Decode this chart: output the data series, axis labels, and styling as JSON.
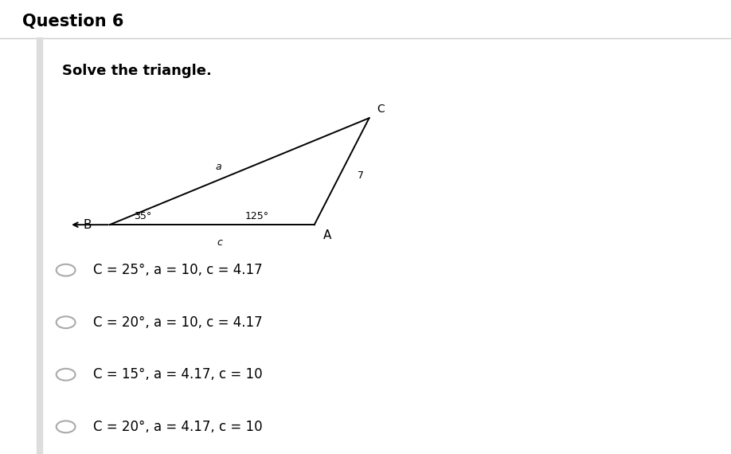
{
  "title": "Question 6",
  "subtitle": "Solve the triangle.",
  "background_color": "#ffffff",
  "angle_B": "35°",
  "angle_A": "125°",
  "label_a": "a",
  "label_c": "c",
  "label_7": "7",
  "vertex_labels": {
    "B": "B",
    "A": "A",
    "C": "C"
  },
  "choices": [
    "C = 25°, a = 10, c = 4.17",
    "C = 20°, a = 10, c = 4.17",
    "C = 15°, a = 4.17, c = 10",
    "C = 20°, a = 4.17, c = 10"
  ],
  "title_fontsize": 15,
  "subtitle_fontsize": 13,
  "choice_fontsize": 12,
  "line_color": "#000000",
  "text_color": "#000000",
  "radio_color": "#aaaaaa",
  "divider_color": "#cccccc"
}
